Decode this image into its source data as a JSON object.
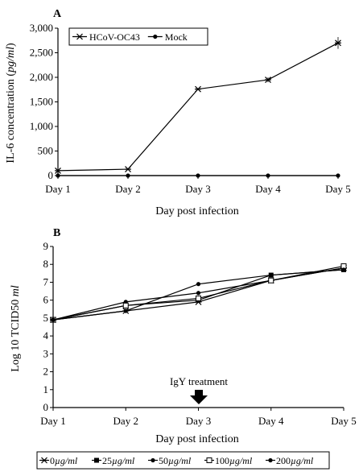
{
  "chart_data": [
    {
      "panel": "A",
      "type": "line",
      "categories": [
        "Day 1",
        "Day 2",
        "Day 3",
        "Day 4",
        "Day 5"
      ],
      "xlabel": "Day post infection",
      "ylabel_prefix": "IL-6 concentration (",
      "ylabel_unit": "pg/ml",
      "ylabel_suffix": ")",
      "ylim": [
        0,
        3000
      ],
      "yticks": [
        0,
        500,
        1000,
        1500,
        2000,
        2500,
        3000
      ],
      "ytick_labels": [
        "0",
        "500",
        "1,000",
        "1,500",
        "2,000",
        "2,500",
        "3,000"
      ],
      "legend_position": "top-left",
      "series": [
        {
          "name": "HCoV-OC43",
          "marker": "star",
          "values": [
            100,
            130,
            1760,
            1950,
            2700
          ],
          "errors": [
            0,
            0,
            0,
            50,
            120
          ]
        },
        {
          "name": "Mock",
          "marker": "dot",
          "values": [
            0,
            0,
            0,
            0,
            0
          ],
          "errors": [
            0,
            0,
            0,
            0,
            0
          ]
        }
      ]
    },
    {
      "panel": "B",
      "type": "line",
      "categories": [
        "Day 1",
        "Day 2",
        "Day 3",
        "Day 4",
        "Day 5"
      ],
      "xlabel": "Day post infection",
      "ylabel_prefix": "Log 10 TCID50 ",
      "ylabel_unit": "ml",
      "ylabel_suffix": "",
      "ylim": [
        0,
        9
      ],
      "yticks": [
        0,
        1,
        2,
        3,
        4,
        5,
        6,
        7,
        8,
        9
      ],
      "ytick_labels": [
        "0",
        "1",
        "2",
        "3",
        "4",
        "5",
        "6",
        "7",
        "8",
        "9"
      ],
      "annotation": {
        "text": "IgY treatment",
        "category_index": 2
      },
      "legend_position": "bottom",
      "series": [
        {
          "name_value": "0",
          "unit": "µg/ml",
          "marker": "star",
          "values": [
            4.9,
            5.4,
            5.9,
            7.1,
            7.8
          ]
        },
        {
          "name_value": "25",
          "unit": "µg/ml",
          "marker": "square",
          "values": [
            4.9,
            5.7,
            6.0,
            7.4,
            7.7
          ]
        },
        {
          "name_value": "50",
          "unit": "µg/ml",
          "marker": "dot",
          "values": [
            4.9,
            5.9,
            6.4,
            7.1,
            7.8
          ]
        },
        {
          "name_value": "100",
          "unit": "µg/ml",
          "marker": "square-open",
          "values": [
            4.9,
            5.7,
            6.1,
            7.1,
            7.9
          ]
        },
        {
          "name_value": "200",
          "unit": "µg/ml",
          "marker": "dot",
          "values": [
            4.9,
            5.4,
            6.9,
            7.4,
            7.7
          ]
        }
      ]
    }
  ]
}
